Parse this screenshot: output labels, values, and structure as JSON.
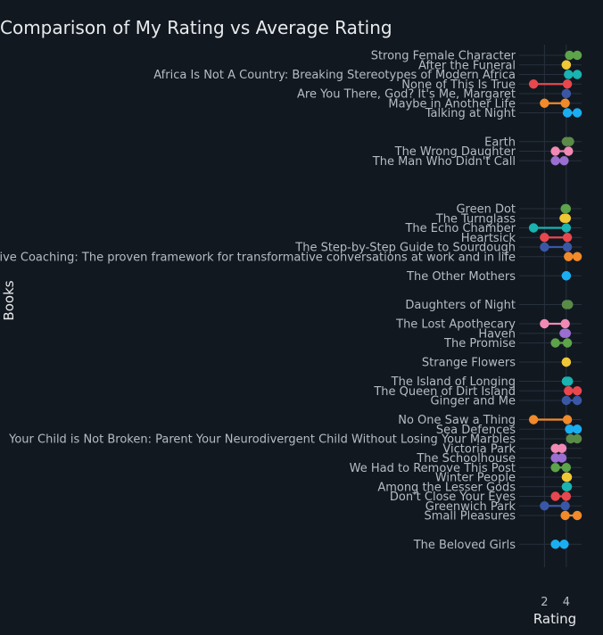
{
  "chart_data": {
    "type": "dumbbell",
    "title": "Comparison of My Rating vs Average Rating",
    "xlabel": "Rating",
    "ylabel": "Books",
    "xlim": [
      0.5,
      5.4
    ],
    "xticks": [
      2,
      4
    ],
    "xtick_labels": [
      "2",
      "4"
    ],
    "grid": true,
    "rows": [
      {
        "label": "Strong Female Character",
        "my": 5,
        "avg": 4.3,
        "color": "#5da34a",
        "slot": 0
      },
      {
        "label": "After the Funeral",
        "my": 4,
        "avg": 4.0,
        "color": "#f0c734",
        "slot": 1
      },
      {
        "label": "Africa Is Not A Country: Breaking Stereotypes of Modern Africa",
        "my": 5,
        "avg": 4.2,
        "color": "#19b3b1",
        "slot": 2
      },
      {
        "label": "None of This Is True",
        "my": 1,
        "avg": 4.1,
        "color": "#e8474e",
        "slot": 3
      },
      {
        "label": "Are You There, God? It's Me, Margaret",
        "my": 4,
        "avg": 4.0,
        "color": "#3a57a6",
        "slot": 4
      },
      {
        "label": "Maybe in Another Life",
        "my": 2,
        "avg": 3.9,
        "color": "#f08a2a",
        "slot": 5
      },
      {
        "label": "Talking at Night",
        "my": 5,
        "avg": 4.1,
        "color": "#1aaef0",
        "slot": 6
      },
      {
        "label": "Earth",
        "my": 4,
        "avg": 4.3,
        "color": "#5a8a48",
        "slot": 9
      },
      {
        "label": "The Wrong Daughter",
        "my": 3,
        "avg": 4.2,
        "color": "#f08ab4",
        "slot": 10
      },
      {
        "label": "The Man Who Didn't Call",
        "my": 3,
        "avg": 3.8,
        "color": "#9b6ed1",
        "slot": 11
      },
      {
        "label": "Green Dot",
        "my": 4,
        "avg": 3.9,
        "color": "#5da34a",
        "slot": 16
      },
      {
        "label": "The Turnglass",
        "my": 4,
        "avg": 3.8,
        "color": "#f0c734",
        "slot": 17
      },
      {
        "label": "The Echo Chamber",
        "my": 1,
        "avg": 4.0,
        "color": "#19b3b1",
        "slot": 18
      },
      {
        "label": "Heartsick",
        "my": 2,
        "avg": 4.1,
        "color": "#e8474e",
        "slot": 19
      },
      {
        "label": "The Step-by-Step Guide to Sourdough",
        "my": 2,
        "avg": 4.1,
        "color": "#3a57a6",
        "slot": 20
      },
      {
        "label": "Transformative Coaching: The proven framework for transformative conversations at work and in life",
        "my": 5,
        "avg": 4.2,
        "color": "#f08a2a",
        "slot": 21
      },
      {
        "label": "The Other Mothers",
        "my": 4,
        "avg": 4.0,
        "color": "#1aaef0",
        "slot": 23
      },
      {
        "label": "Daughters of Night",
        "my": 4,
        "avg": 4.2,
        "color": "#5a8a48",
        "slot": 26
      },
      {
        "label": "The Lost Apothecary",
        "my": 2,
        "avg": 3.9,
        "color": "#f08ab4",
        "slot": 28
      },
      {
        "label": "Haven",
        "my": 4,
        "avg": 3.8,
        "color": "#9b6ed1",
        "slot": 29
      },
      {
        "label": "The Promise",
        "my": 3,
        "avg": 4.1,
        "color": "#5da34a",
        "slot": 30
      },
      {
        "label": "Strange Flowers",
        "my": 4,
        "avg": 4.0,
        "color": "#f0c734",
        "slot": 32
      },
      {
        "label": "The Island of Longing",
        "my": 4,
        "avg": 4.2,
        "color": "#19b3b1",
        "slot": 34
      },
      {
        "label": "The Queen of Dirt Island",
        "my": 5,
        "avg": 4.2,
        "color": "#e8474e",
        "slot": 35
      },
      {
        "label": "Ginger and Me",
        "my": 5,
        "avg": 4.0,
        "color": "#3a57a6",
        "slot": 36
      },
      {
        "label": "No One Saw a Thing",
        "my": 1,
        "avg": 4.1,
        "color": "#f08a2a",
        "slot": 38
      },
      {
        "label": "Sea Defences",
        "my": 5,
        "avg": 4.3,
        "color": "#1aaef0",
        "slot": 39
      },
      {
        "label": "Your Child is Not Broken: Parent Your Neurodivergent Child Without Losing Your Marbles",
        "my": 5,
        "avg": 4.4,
        "color": "#5a8a48",
        "slot": 40
      },
      {
        "label": "Victoria Park",
        "my": 3,
        "avg": 3.6,
        "color": "#f08ab4",
        "slot": 41
      },
      {
        "label": "The Schoolhouse",
        "my": 3,
        "avg": 3.6,
        "color": "#9b6ed1",
        "slot": 42
      },
      {
        "label": "We Had to Remove This Post",
        "my": 3,
        "avg": 4.0,
        "color": "#5da34a",
        "slot": 43
      },
      {
        "label": "Winter People",
        "my": 4,
        "avg": 4.1,
        "color": "#f0c734",
        "slot": 44
      },
      {
        "label": "Among the Lesser Gods",
        "my": 4,
        "avg": 4.1,
        "color": "#19b3b1",
        "slot": 45
      },
      {
        "label": "Don't Close Your Eyes",
        "my": 3,
        "avg": 4.0,
        "color": "#e8474e",
        "slot": 46
      },
      {
        "label": "Greenwich Park",
        "my": 2,
        "avg": 3.9,
        "color": "#3a57a6",
        "slot": 47
      },
      {
        "label": "Small Pleasures",
        "my": 5,
        "avg": 3.9,
        "color": "#f08a2a",
        "slot": 48
      },
      {
        "label": "The Beloved Girls",
        "my": 3,
        "avg": 3.8,
        "color": "#1aaef0",
        "slot": 51
      }
    ]
  }
}
